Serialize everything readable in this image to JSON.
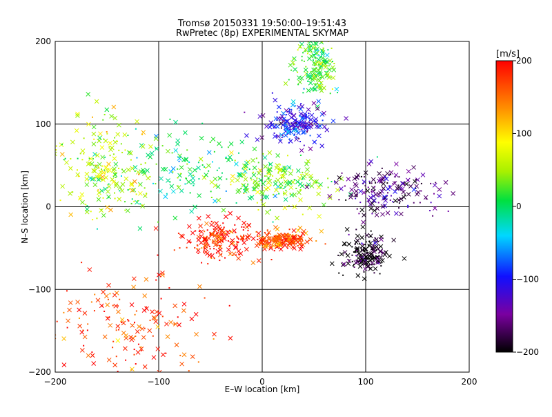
{
  "chart_data": {
    "type": "scatter",
    "title_line1": "Tromsø 20150331 19:50:00–19:51:43",
    "title_line2": "RwPretec (8p) EXPERIMENTAL SKYMAP",
    "xlabel": "E–W location [km]",
    "ylabel": "N–S location [km]",
    "xlim": [
      -200,
      200
    ],
    "ylim": [
      -200,
      200
    ],
    "x_ticks": [
      -200,
      -100,
      0,
      100,
      200
    ],
    "y_ticks": [
      -200,
      -100,
      0,
      100,
      200
    ],
    "x_tick_labels": [
      "−200",
      "−100",
      "0",
      "100",
      "200"
    ],
    "y_tick_labels": [
      "−200",
      "−100",
      "0",
      "100",
      "200"
    ],
    "grid": true,
    "colorbar": {
      "label": "[m/s]",
      "range": [
        -200,
        200
      ],
      "ticks": [
        200,
        100,
        0,
        -100,
        -200
      ],
      "tick_labels": [
        "200",
        "100",
        "0",
        "−100",
        "−200"
      ]
    },
    "clusters": [
      {
        "x": -40,
        "y": -40,
        "v": 190,
        "spread_x": 18,
        "spread_y": 12
      },
      {
        "x": 98,
        "y": -58,
        "v": -200,
        "spread_x": 12,
        "spread_y": 12
      },
      {
        "x": 15,
        "y": 30,
        "v": 40,
        "spread_x": 30,
        "spread_y": 15
      },
      {
        "x": 52,
        "y": 170,
        "v": 20,
        "spread_x": 10,
        "spread_y": 20
      },
      {
        "x": 30,
        "y": 100,
        "v": -110,
        "spread_x": 15,
        "spread_y": 12
      },
      {
        "x": 20,
        "y": -40,
        "v": 170,
        "spread_x": 15,
        "spread_y": 6
      },
      {
        "x": -80,
        "y": 40,
        "v": 10,
        "spread_x": 50,
        "spread_y": 25
      },
      {
        "x": 120,
        "y": 20,
        "v": -160,
        "spread_x": 25,
        "spread_y": 15
      },
      {
        "x": -130,
        "y": -150,
        "v": 180,
        "spread_x": 40,
        "spread_y": 35
      },
      {
        "x": -150,
        "y": 50,
        "v": 60,
        "spread_x": 25,
        "spread_y": 30
      }
    ]
  }
}
